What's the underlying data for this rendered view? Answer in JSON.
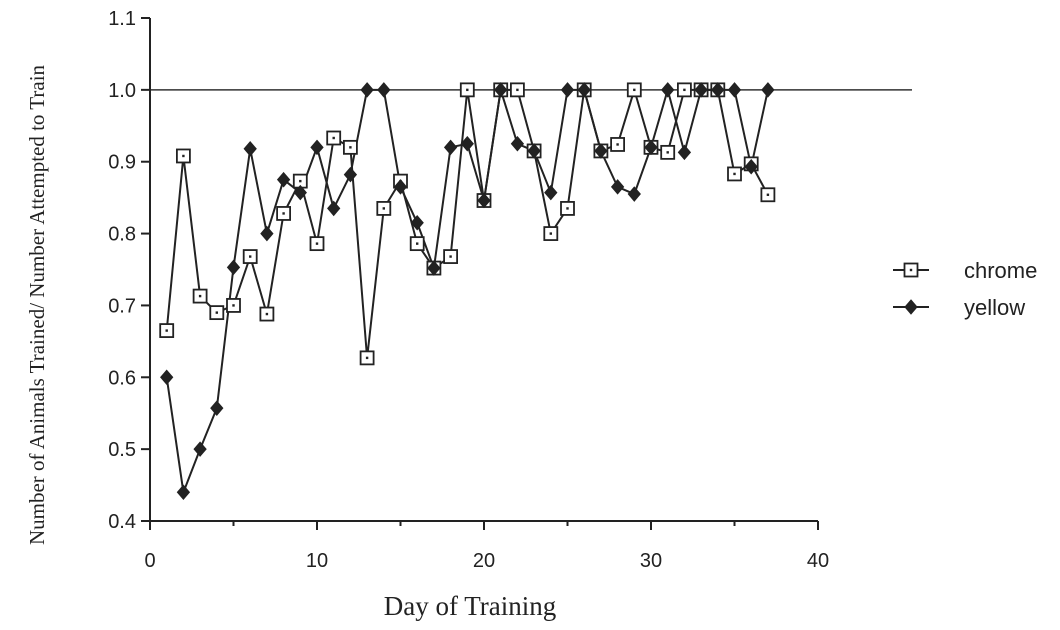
{
  "chart_data": {
    "type": "line",
    "title": "",
    "xlabel": "Day of Training",
    "ylabel": "Number of Animals Trained/ Number Attempted to Train",
    "xlim": [
      0,
      40
    ],
    "ylim": [
      0.4,
      1.1
    ],
    "x_ticks": [
      "0",
      "10",
      "20",
      "30",
      "40"
    ],
    "y_ticks": [
      "0.4",
      "0.5",
      "0.6",
      "0.7",
      "0.8",
      "0.9",
      "1.0",
      "1.1"
    ],
    "reference_line": 1.0,
    "legend_position": "right",
    "series": [
      {
        "name": "chrome",
        "marker": "open-square",
        "points": [
          [
            1,
            0.665
          ],
          [
            2,
            0.908
          ],
          [
            3,
            0.713
          ],
          [
            4,
            0.69
          ],
          [
            5,
            0.7
          ],
          [
            6,
            0.768
          ],
          [
            7,
            0.688
          ],
          [
            8,
            0.828
          ],
          [
            9,
            0.873
          ],
          [
            10,
            0.786
          ],
          [
            11,
            0.933
          ],
          [
            12,
            0.92
          ],
          [
            13,
            0.627
          ],
          [
            14,
            0.835
          ],
          [
            15,
            0.873
          ],
          [
            16,
            0.786
          ],
          [
            17,
            0.752
          ],
          [
            18,
            0.768
          ],
          [
            19,
            1.0
          ],
          [
            20,
            0.846
          ],
          [
            21,
            1.0
          ],
          [
            22,
            1.0
          ],
          [
            23,
            0.915
          ],
          [
            24,
            0.8
          ],
          [
            25,
            0.835
          ],
          [
            26,
            1.0
          ],
          [
            27,
            0.915
          ],
          [
            28,
            0.924
          ],
          [
            29,
            1.0
          ],
          [
            30,
            0.92
          ],
          [
            31,
            0.913
          ],
          [
            32,
            1.0
          ],
          [
            33,
            1.0
          ],
          [
            34,
            1.0
          ],
          [
            35,
            0.883
          ],
          [
            36,
            0.897
          ],
          [
            37,
            0.854
          ]
        ]
      },
      {
        "name": "yellow",
        "marker": "filled-diamond",
        "points": [
          [
            1,
            0.6
          ],
          [
            2,
            0.44
          ],
          [
            3,
            0.5
          ],
          [
            4,
            0.557
          ],
          [
            5,
            0.753
          ],
          [
            6,
            0.918
          ],
          [
            7,
            0.8
          ],
          [
            8,
            0.875
          ],
          [
            9,
            0.857
          ],
          [
            10,
            0.92
          ],
          [
            11,
            0.835
          ],
          [
            12,
            0.882
          ],
          [
            13,
            1.0
          ],
          [
            14,
            1.0
          ],
          [
            15,
            0.865
          ],
          [
            16,
            0.815
          ],
          [
            17,
            0.752
          ],
          [
            18,
            0.92
          ],
          [
            19,
            0.925
          ],
          [
            20,
            0.846
          ],
          [
            21,
            1.0
          ],
          [
            22,
            0.925
          ],
          [
            23,
            0.915
          ],
          [
            24,
            0.857
          ],
          [
            25,
            1.0
          ],
          [
            26,
            1.0
          ],
          [
            27,
            0.915
          ],
          [
            28,
            0.865
          ],
          [
            29,
            0.855
          ],
          [
            30,
            0.92
          ],
          [
            31,
            1.0
          ],
          [
            32,
            0.913
          ],
          [
            33,
            1.0
          ],
          [
            34,
            1.0
          ],
          [
            35,
            1.0
          ],
          [
            36,
            0.893
          ],
          [
            37,
            1.0
          ]
        ]
      }
    ]
  }
}
